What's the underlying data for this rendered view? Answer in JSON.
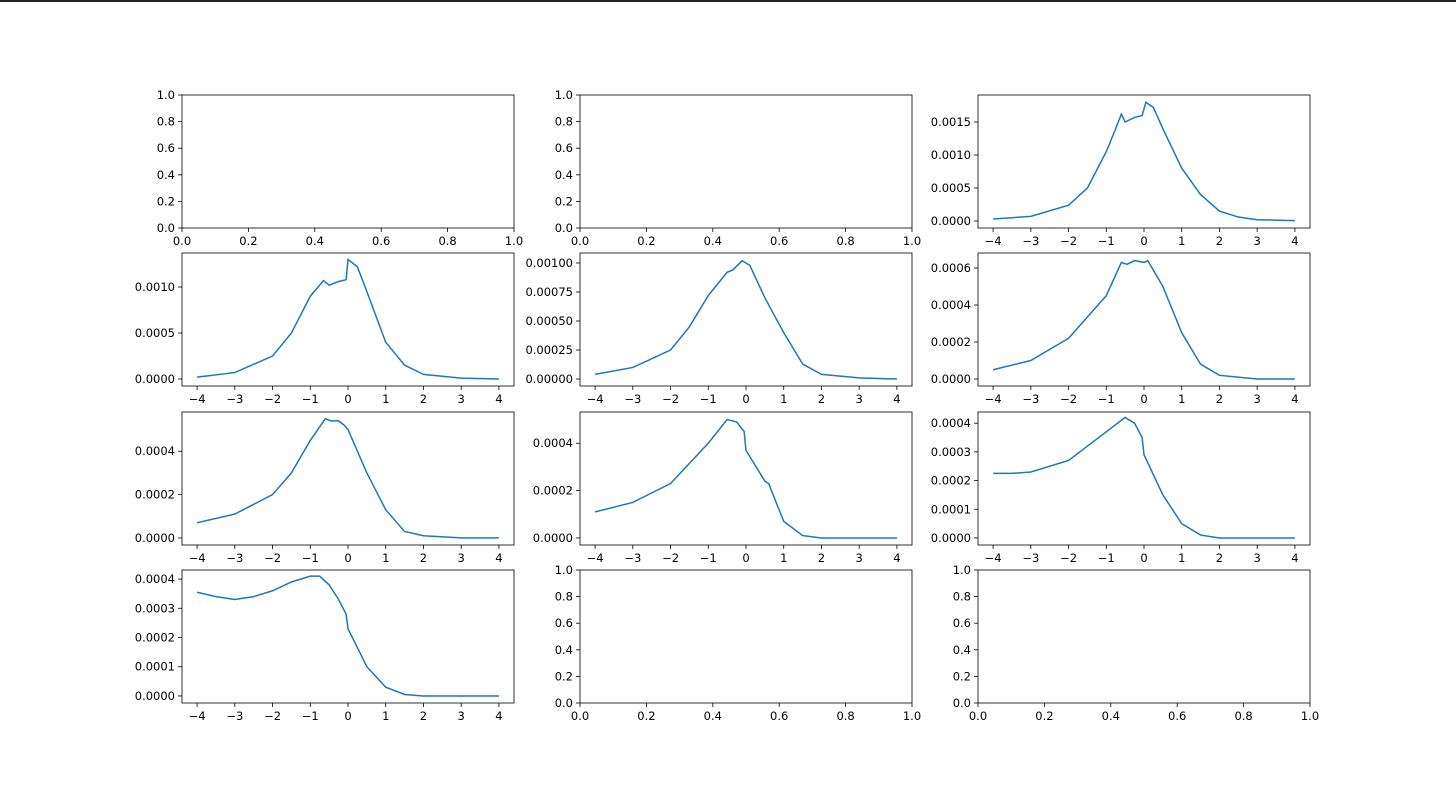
{
  "chart_data": [
    {
      "type": "line",
      "xlim": [
        0,
        1
      ],
      "ylim": [
        0,
        1
      ],
      "xticks": [
        {
          "value": 0,
          "label": "0.0"
        },
        0.2,
        0.4,
        0.6,
        0.8,
        {
          "value": 1,
          "label": "1.0"
        }
      ],
      "yticks": [
        {
          "value": 0,
          "label": "0.0"
        },
        0.2,
        0.4,
        0.6,
        0.8,
        {
          "value": 1,
          "label": "1.0"
        }
      ]
    },
    {
      "type": "line",
      "xlim": [
        0,
        1
      ],
      "ylim": [
        0,
        1
      ],
      "xticks": [
        {
          "value": 0,
          "label": "0.0"
        },
        0.2,
        0.4,
        0.6,
        0.8,
        {
          "value": 1,
          "label": "1.0"
        }
      ],
      "yticks": [
        {
          "value": 0,
          "label": "0.0"
        },
        0.2,
        0.4,
        0.6,
        0.8,
        {
          "value": 1,
          "label": "1.0"
        }
      ]
    },
    {
      "type": "line",
      "xlim": [
        -4.4,
        4.4
      ],
      "ylim": [
        -0.000106,
        0.00191
      ],
      "color": "#1f77b4",
      "xticks": [
        {
          "value": -4,
          "label": "−4"
        },
        {
          "value": -3,
          "label": "−3"
        },
        {
          "value": -2,
          "label": "−2"
        },
        {
          "value": -1,
          "label": "−1"
        },
        0,
        1,
        2,
        3,
        4
      ],
      "yticks": [
        {
          "value": 0,
          "label": "0.0000"
        },
        0.0005,
        {
          "value": 0.001,
          "label": "0.0010"
        },
        0.0015
      ],
      "x": [
        -4,
        -3,
        -2,
        -1.5,
        -1,
        -0.75,
        -0.6,
        -0.5,
        -0.25,
        -0.05,
        0.05,
        0.25,
        0.5,
        1,
        1.5,
        2,
        2.5,
        3,
        4
      ],
      "values": [
        3e-05,
        7e-05,
        0.00024,
        0.0005,
        0.00105,
        0.0014,
        0.00162,
        0.0015,
        0.00157,
        0.0016,
        0.0018,
        0.00172,
        0.0014,
        0.0008,
        0.0004,
        0.00015,
        6e-05,
        2e-05,
        5e-06
      ]
    },
    {
      "type": "line",
      "xlim": [
        -4.4,
        4.4
      ],
      "ylim": [
        -7.6e-05,
        0.00137
      ],
      "color": "#1f77b4",
      "xticks": [
        {
          "value": -4,
          "label": "−4"
        },
        {
          "value": -3,
          "label": "−3"
        },
        {
          "value": -2,
          "label": "−2"
        },
        {
          "value": -1,
          "label": "−1"
        },
        0,
        1,
        2,
        3,
        4
      ],
      "yticks": [
        {
          "value": 0,
          "label": "0.0000"
        },
        0.0005,
        {
          "value": 0.001,
          "label": "0.0010"
        }
      ],
      "x": [
        -4,
        -3,
        -2,
        -1.5,
        -1,
        -0.65,
        -0.5,
        -0.25,
        -0.05,
        0,
        0.25,
        0.5,
        1,
        1.5,
        2,
        3,
        4
      ],
      "values": [
        2e-05,
        7e-05,
        0.00025,
        0.0005,
        0.0009,
        0.00107,
        0.00102,
        0.00106,
        0.00108,
        0.0013,
        0.00122,
        0.00095,
        0.0004,
        0.00015,
        5e-05,
        1e-05,
        0
      ]
    },
    {
      "type": "line",
      "xlim": [
        -4.4,
        4.4
      ],
      "ylim": [
        -6e-05,
        0.001086
      ],
      "color": "#1f77b4",
      "xticks": [
        {
          "value": -4,
          "label": "−4"
        },
        {
          "value": -3,
          "label": "−3"
        },
        {
          "value": -2,
          "label": "−2"
        },
        {
          "value": -1,
          "label": "−1"
        },
        0,
        1,
        2,
        3,
        4
      ],
      "yticks": [
        {
          "value": 0,
          "label": "0.00000"
        },
        0.00025,
        {
          "value": 0.0005,
          "label": "0.00050"
        },
        0.00075,
        {
          "value": 0.001,
          "label": "0.00100"
        }
      ],
      "x": [
        -4,
        -3,
        -2,
        -1.5,
        -1,
        -0.5,
        -0.35,
        -0.1,
        0.1,
        0.5,
        1,
        1.5,
        2,
        3,
        4
      ],
      "values": [
        4e-05,
        0.0001,
        0.00025,
        0.00045,
        0.00072,
        0.00092,
        0.00094,
        0.00102,
        0.00098,
        0.0007,
        0.0004,
        0.00013,
        4e-05,
        1e-05,
        0
      ]
    },
    {
      "type": "line",
      "xlim": [
        -4.4,
        4.4
      ],
      "ylim": [
        -3.78e-05,
        0.000681
      ],
      "color": "#1f77b4",
      "xticks": [
        {
          "value": -4,
          "label": "−4"
        },
        {
          "value": -3,
          "label": "−3"
        },
        {
          "value": -2,
          "label": "−2"
        },
        {
          "value": -1,
          "label": "−1"
        },
        0,
        1,
        2,
        3,
        4
      ],
      "yticks": [
        {
          "value": 0,
          "label": "0.0000"
        },
        0.0002,
        0.0004,
        0.0006
      ],
      "x": [
        -4,
        -3,
        -2,
        -1,
        -0.6,
        -0.45,
        -0.25,
        0,
        0.1,
        0.5,
        1,
        1.5,
        2,
        3,
        4
      ],
      "values": [
        5e-05,
        0.0001,
        0.00022,
        0.00045,
        0.00063,
        0.00062,
        0.00064,
        0.00063,
        0.00064,
        0.0005,
        0.00025,
        8e-05,
        2e-05,
        0,
        0
      ]
    },
    {
      "type": "line",
      "xlim": [
        -4.4,
        4.4
      ],
      "ylim": [
        -3.26e-05,
        0.000581
      ],
      "color": "#1f77b4",
      "xticks": [
        {
          "value": -4,
          "label": "−4"
        },
        {
          "value": -3,
          "label": "−3"
        },
        {
          "value": -2,
          "label": "−2"
        },
        {
          "value": -1,
          "label": "−1"
        },
        0,
        1,
        2,
        3,
        4
      ],
      "yticks": [
        {
          "value": 0,
          "label": "0.0000"
        },
        0.0002,
        0.0004
      ],
      "x": [
        -4,
        -3,
        -2,
        -1.5,
        -1,
        -0.6,
        -0.45,
        -0.25,
        -0.1,
        0,
        0.5,
        1,
        1.5,
        2,
        3,
        4
      ],
      "values": [
        7e-05,
        0.00011,
        0.0002,
        0.0003,
        0.00045,
        0.00055,
        0.00054,
        0.00054,
        0.00052,
        0.0005,
        0.0003,
        0.00013,
        3e-05,
        1e-05,
        0,
        0
      ]
    },
    {
      "type": "line",
      "xlim": [
        -4.4,
        4.4
      ],
      "ylim": [
        -2.98e-05,
        0.000532
      ],
      "color": "#1f77b4",
      "xticks": [
        {
          "value": -4,
          "label": "−4"
        },
        {
          "value": -3,
          "label": "−3"
        },
        {
          "value": -2,
          "label": "−2"
        },
        {
          "value": -1,
          "label": "−1"
        },
        0,
        1,
        2,
        3,
        4
      ],
      "yticks": [
        {
          "value": 0,
          "label": "0.0000"
        },
        0.0002,
        0.0004
      ],
      "x": [
        -4,
        -3,
        -2,
        -1,
        -0.5,
        -0.25,
        -0.05,
        0,
        0.5,
        0.6,
        1,
        1.5,
        2,
        3,
        4
      ],
      "values": [
        0.00011,
        0.00015,
        0.00023,
        0.0004,
        0.0005,
        0.00049,
        0.00045,
        0.00037,
        0.00024,
        0.00023,
        7e-05,
        1e-05,
        0,
        0,
        0
      ]
    },
    {
      "type": "line",
      "xlim": [
        -4.4,
        4.4
      ],
      "ylim": [
        -2.46e-05,
        0.000439
      ],
      "color": "#1f77b4",
      "xticks": [
        {
          "value": -4,
          "label": "−4"
        },
        {
          "value": -3,
          "label": "−3"
        },
        {
          "value": -2,
          "label": "−2"
        },
        {
          "value": -1,
          "label": "−1"
        },
        0,
        1,
        2,
        3,
        4
      ],
      "yticks": [
        {
          "value": 0,
          "label": "0.0000"
        },
        0.0001,
        0.0002,
        0.0003,
        0.0004
      ],
      "x": [
        -4,
        -3.5,
        -3,
        -2,
        -1,
        -0.5,
        -0.25,
        -0.05,
        0,
        0.5,
        1,
        1.5,
        2,
        3,
        4
      ],
      "values": [
        0.000225,
        0.000225,
        0.00023,
        0.00027,
        0.00037,
        0.00042,
        0.0004,
        0.00035,
        0.00029,
        0.00015,
        5e-05,
        1e-05,
        0,
        0,
        0
      ]
    },
    {
      "type": "line",
      "xlim": [
        -4.4,
        4.4
      ],
      "ylim": [
        -2.41e-05,
        0.000431
      ],
      "color": "#1f77b4",
      "xticks": [
        {
          "value": -4,
          "label": "−4"
        },
        {
          "value": -3,
          "label": "−3"
        },
        {
          "value": -2,
          "label": "−2"
        },
        {
          "value": -1,
          "label": "−1"
        },
        0,
        1,
        2,
        3,
        4
      ],
      "yticks": [
        {
          "value": 0,
          "label": "0.0000"
        },
        0.0001,
        0.0002,
        0.0003,
        0.0004
      ],
      "x": [
        -4,
        -3.5,
        -3,
        -2.5,
        -2,
        -1.5,
        -1,
        -0.75,
        -0.5,
        -0.25,
        -0.05,
        0,
        0.5,
        1,
        1.5,
        2,
        3,
        4
      ],
      "values": [
        0.000355,
        0.00034,
        0.00033,
        0.00034,
        0.00036,
        0.00039,
        0.00041,
        0.00041,
        0.00038,
        0.00033,
        0.00028,
        0.00023,
        0.0001,
        3e-05,
        5e-06,
        0,
        0,
        0
      ]
    },
    {
      "type": "line",
      "xlim": [
        0,
        1
      ],
      "ylim": [
        0,
        1
      ],
      "xticks": [
        {
          "value": 0,
          "label": "0.0"
        },
        0.2,
        0.4,
        0.6,
        0.8,
        {
          "value": 1,
          "label": "1.0"
        }
      ],
      "yticks": [
        {
          "value": 0,
          "label": "0.0"
        },
        0.2,
        0.4,
        0.6,
        0.8,
        {
          "value": 1,
          "label": "1.0"
        }
      ]
    },
    {
      "type": "line",
      "xlim": [
        0,
        1
      ],
      "ylim": [
        0,
        1
      ],
      "xticks": [
        {
          "value": 0,
          "label": "0.0"
        },
        0.2,
        0.4,
        0.6,
        0.8,
        {
          "value": 1,
          "label": "1.0"
        }
      ],
      "yticks": [
        {
          "value": 0,
          "label": "0.0"
        },
        0.2,
        0.4,
        0.6,
        0.8,
        {
          "value": 1,
          "label": "1.0"
        }
      ]
    }
  ]
}
